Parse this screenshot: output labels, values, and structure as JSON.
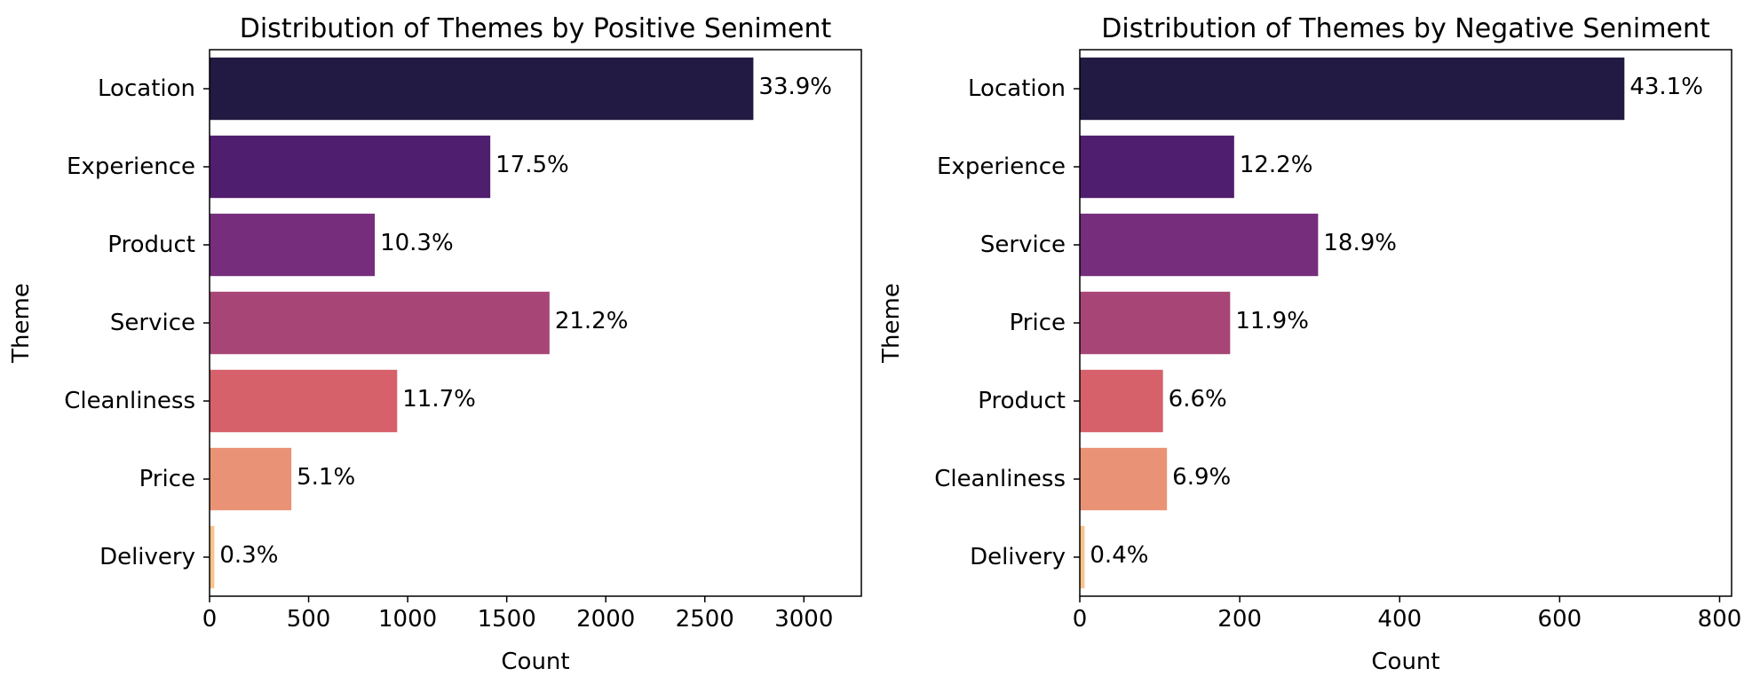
{
  "chart_data": [
    {
      "type": "bar",
      "orientation": "horizontal",
      "title": "Distribution of Themes by Positive Seniment",
      "xlabel": "Count",
      "ylabel": "Theme",
      "categories": [
        "Location",
        "Experience",
        "Product",
        "Service",
        "Cleanliness",
        "Price",
        "Delivery"
      ],
      "values": [
        2745,
        1417,
        834,
        1716,
        947,
        413,
        24
      ],
      "labels": [
        "33.9%",
        "17.5%",
        "10.3%",
        "21.2%",
        "11.7%",
        "5.1%",
        "0.3%"
      ],
      "colors": [
        "#221a42",
        "#501e6e",
        "#752d7c",
        "#a74676",
        "#d6616b",
        "#ea9275",
        "#f9c38a"
      ],
      "xlim": [
        0,
        3290
      ],
      "xticks": [
        0,
        500,
        1000,
        1500,
        2000,
        2500,
        3000
      ],
      "grid": false,
      "legend": "none"
    },
    {
      "type": "bar",
      "orientation": "horizontal",
      "title": "Distribution of Themes by Negative Seniment",
      "xlabel": "Count",
      "ylabel": "Theme",
      "categories": [
        "Location",
        "Experience",
        "Service",
        "Price",
        "Product",
        "Cleanliness",
        "Delivery"
      ],
      "values": [
        681,
        193,
        298,
        188,
        104,
        109,
        6
      ],
      "labels": [
        "43.1%",
        "12.2%",
        "18.9%",
        "11.9%",
        "6.6%",
        "6.9%",
        "0.4%"
      ],
      "colors": [
        "#221a42",
        "#501e6e",
        "#752d7c",
        "#a74676",
        "#d6616b",
        "#ea9275",
        "#f9c38a"
      ],
      "xlim": [
        0,
        815
      ],
      "xticks": [
        0,
        200,
        400,
        600,
        800
      ],
      "grid": false,
      "legend": "none"
    }
  ]
}
